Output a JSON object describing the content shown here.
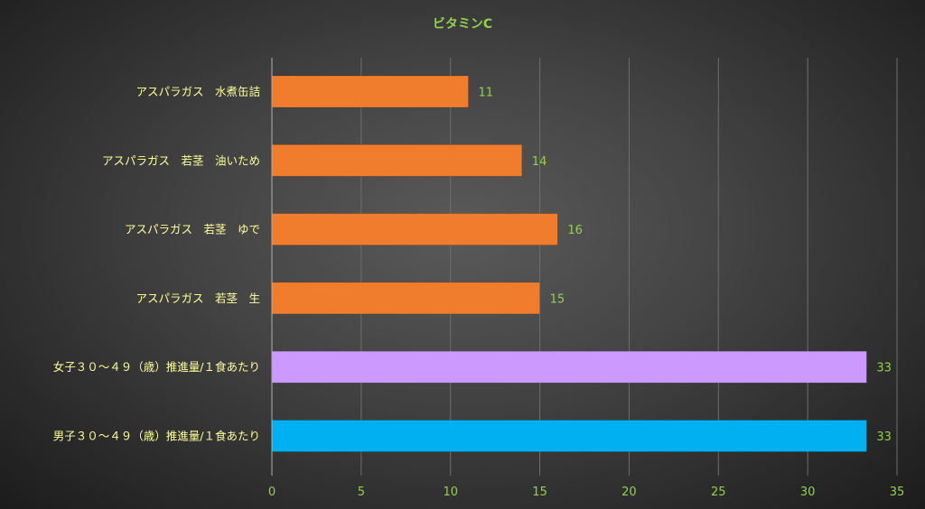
{
  "chart_data": {
    "type": "bar",
    "orientation": "horizontal",
    "title": "ビタミンC",
    "categories": [
      "アスパラガス　水煮缶詰",
      "アスパラガス　若茎　油いため",
      "アスパラガス　若茎　ゆで",
      "アスパラガス　若茎　生",
      "女子３０～４９（歳）推進量/１食あたり",
      "男子３０～４９（歳）推進量/１食あたり"
    ],
    "values": [
      11,
      14,
      16,
      15,
      33.3,
      33.3
    ],
    "data_labels": [
      "11",
      "14",
      "16",
      "15",
      "33",
      "33"
    ],
    "bar_colors": [
      "#f07c2e",
      "#f07c2e",
      "#f07c2e",
      "#f07c2e",
      "#cc99ff",
      "#00b0f0"
    ],
    "xlim": [
      0,
      35
    ],
    "x_ticks": [
      0,
      5,
      10,
      15,
      20,
      25,
      30,
      35
    ],
    "x_tick_labels": [
      "0",
      "5",
      "10",
      "15",
      "20",
      "25",
      "30",
      "35"
    ],
    "grid": true,
    "legend": "none",
    "colors": {
      "title": "#92d050",
      "category_label": "#ffff99",
      "tick_label": "#92d050",
      "data_label": "#92d050",
      "gridline": "#6e6e6e",
      "axis": "#b0b0b0"
    }
  }
}
